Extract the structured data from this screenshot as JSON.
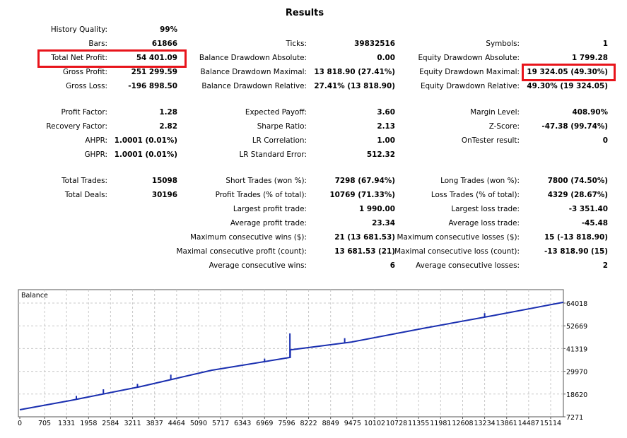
{
  "title": "Results",
  "sections": [
    [
      [
        {
          "label": "History Quality:",
          "value": "99%"
        },
        null,
        null
      ],
      [
        {
          "label": "Bars:",
          "value": "61866"
        },
        {
          "label": "Ticks:",
          "value": "39832516"
        },
        {
          "label": "Symbols:",
          "value": "1"
        }
      ],
      [
        {
          "label": "Total Net Profit:",
          "value": "54 401.09"
        },
        {
          "label": "Balance Drawdown Absolute:",
          "value": "0.00"
        },
        {
          "label": "Equity Drawdown Absolute:",
          "value": "1 799.28"
        }
      ],
      [
        {
          "label": "Gross Profit:",
          "value": "251 299.59"
        },
        {
          "label": "Balance Drawdown Maximal:",
          "value": "13 818.90 (27.41%)"
        },
        {
          "label": "Equity Drawdown Maximal:",
          "value": "19 324.05 (49.30%)"
        }
      ],
      [
        {
          "label": "Gross Loss:",
          "value": "-196 898.50"
        },
        {
          "label": "Balance Drawdown Relative:",
          "value": "27.41% (13 818.90)"
        },
        {
          "label": "Equity Drawdown Relative:",
          "value": "49.30% (19 324.05)"
        }
      ]
    ],
    [
      [
        {
          "label": "Profit Factor:",
          "value": "1.28"
        },
        {
          "label": "Expected Payoff:",
          "value": "3.60"
        },
        {
          "label": "Margin Level:",
          "value": "408.90%"
        }
      ],
      [
        {
          "label": "Recovery Factor:",
          "value": "2.82"
        },
        {
          "label": "Sharpe Ratio:",
          "value": "2.13"
        },
        {
          "label": "Z-Score:",
          "value": "-47.38 (99.74%)"
        }
      ],
      [
        {
          "label": "AHPR:",
          "value": "1.0001 (0.01%)"
        },
        {
          "label": "LR Correlation:",
          "value": "1.00"
        },
        {
          "label": "OnTester result:",
          "value": "0"
        }
      ],
      [
        {
          "label": "GHPR:",
          "value": "1.0001 (0.01%)"
        },
        {
          "label": "LR Standard Error:",
          "value": "512.32"
        },
        null
      ]
    ],
    [
      [
        {
          "label": "Total Trades:",
          "value": "15098"
        },
        {
          "label": "Short Trades (won %):",
          "value": "7298 (67.94%)"
        },
        {
          "label": "Long Trades (won %):",
          "value": "7800 (74.50%)"
        }
      ],
      [
        {
          "label": "Total Deals:",
          "value": "30196"
        },
        {
          "label": "Profit Trades (% of total):",
          "value": "10769 (71.33%)"
        },
        {
          "label": "Loss Trades (% of total):",
          "value": "4329 (28.67%)"
        }
      ],
      [
        null,
        {
          "label": "Largest profit trade:",
          "value": "1 990.00"
        },
        {
          "label": "Largest loss trade:",
          "value": "-3 351.40"
        }
      ],
      [
        null,
        {
          "label": "Average profit trade:",
          "value": "23.34"
        },
        {
          "label": "Average loss trade:",
          "value": "-45.48"
        }
      ],
      [
        null,
        {
          "label": "Maximum consecutive wins ($):",
          "value": "21 (13 681.53)"
        },
        {
          "label": "Maximum consecutive losses ($):",
          "value": "15 (-13 818.90)"
        }
      ],
      [
        null,
        {
          "label": "Maximal consecutive profit (count):",
          "value": "13 681.53 (21)"
        },
        {
          "label": "Maximal consecutive loss (count):",
          "value": "-13 818.90 (15)"
        }
      ],
      [
        null,
        {
          "label": "Average consecutive wins:",
          "value": "6"
        },
        {
          "label": "Average consecutive losses:",
          "value": "2"
        }
      ]
    ]
  ],
  "chart_data": {
    "type": "line",
    "title": "Balance",
    "line_color": "#1a2fb0",
    "ylim": [
      7271,
      64018
    ],
    "xlim": [
      0,
      15476
    ],
    "yticks": [
      "64018",
      "52669",
      "41319",
      "29970",
      "18620",
      "7271"
    ],
    "ytick_values": [
      64018,
      52669,
      41319,
      29970,
      18620,
      7271
    ],
    "xticks": [
      "0",
      "705",
      "1331",
      "1958",
      "2584",
      "3211",
      "3837",
      "4464",
      "5090",
      "5717",
      "6343",
      "6969",
      "7596",
      "8222",
      "8849",
      "9475",
      "10102",
      "10728",
      "11355",
      "11981",
      "12608",
      "13234",
      "13861",
      "14487",
      "15114"
    ],
    "xtick_values": [
      0,
      705,
      1331,
      1958,
      2584,
      3211,
      3837,
      4464,
      5090,
      5717,
      6343,
      6969,
      7596,
      8222,
      8849,
      9475,
      10102,
      10728,
      11355,
      11981,
      12608,
      13234,
      13861,
      14487,
      15114
    ],
    "series": [
      {
        "name": "Balance",
        "points": [
          [
            0,
            10800
          ],
          [
            1450,
            15400
          ],
          [
            3450,
            22400
          ],
          [
            5460,
            30500
          ],
          [
            7700,
            36900
          ],
          [
            7701,
            40700
          ],
          [
            9450,
            44600
          ],
          [
            11450,
            51300
          ],
          [
            13460,
            57700
          ],
          [
            15476,
            64400
          ]
        ]
      }
    ],
    "spikes": [
      [
        800,
        13500
      ],
      [
        1610,
        17700
      ],
      [
        2380,
        21000
      ],
      [
        3350,
        23700
      ],
      [
        4300,
        28300
      ],
      [
        6500,
        33700
      ],
      [
        6969,
        36300
      ],
      [
        7690,
        48900
      ],
      [
        9250,
        46500
      ],
      [
        13234,
        59000
      ]
    ],
    "grid": true
  }
}
